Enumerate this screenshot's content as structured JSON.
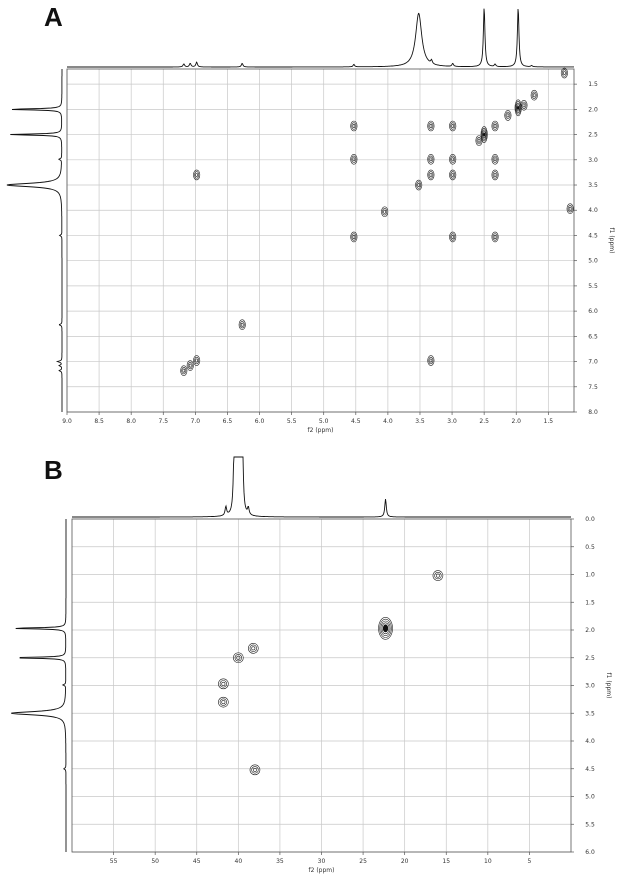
{
  "chart_data": [
    {
      "panel_label": "A",
      "type": "scatter",
      "plot": "2D NMR correlation map (1H-1H)",
      "xlabel": "f2 (ppm)",
      "ylabel": "f1 (ppm)",
      "xlim": [
        9.0,
        1.1
      ],
      "ylim": [
        1.2,
        8.0
      ],
      "x_ticks": [
        "9.0",
        "8.5",
        "8.0",
        "7.5",
        "7.0",
        "6.5",
        "6.0",
        "5.5",
        "5.0",
        "4.5",
        "4.0",
        "3.5",
        "3.0",
        "2.5",
        "2.0",
        "1.5"
      ],
      "y_ticks": [
        "1.5",
        "2.0",
        "2.5",
        "3.0",
        "3.5",
        "4.0",
        "4.5",
        "5.0",
        "5.5",
        "6.0",
        "6.5",
        "7.0",
        "7.5",
        "8.0"
      ],
      "grid": true,
      "projection_x_peaks": [
        {
          "x": 7.18,
          "h": 0.05
        },
        {
          "x": 7.08,
          "h": 0.06
        },
        {
          "x": 6.98,
          "h": 0.08
        },
        {
          "x": 6.27,
          "h": 0.06
        },
        {
          "x": 4.53,
          "h": 0.04
        },
        {
          "x": 3.52,
          "h": 0.88
        },
        {
          "x": 3.32,
          "h": 0.06
        },
        {
          "x": 2.99,
          "h": 0.05
        },
        {
          "x": 2.5,
          "h": 0.98
        },
        {
          "x": 2.33,
          "h": 0.04
        },
        {
          "x": 1.97,
          "h": 0.98
        },
        {
          "x": 1.76,
          "h": 0.02
        }
      ],
      "projection_y_peaks": [
        {
          "y": 2.0,
          "h": 0.9
        },
        {
          "y": 2.5,
          "h": 0.9
        },
        {
          "y": 2.99,
          "h": 0.05
        },
        {
          "y": 3.5,
          "h": 0.95
        },
        {
          "y": 4.5,
          "h": 0.04
        },
        {
          "y": 6.27,
          "h": 0.05
        },
        {
          "y": 7.0,
          "h": 0.08
        },
        {
          "y": 7.08,
          "h": 0.05
        },
        {
          "y": 7.18,
          "h": 0.05
        }
      ],
      "points": [
        {
          "x": 1.25,
          "y": 1.28
        },
        {
          "x": 1.72,
          "y": 1.72
        },
        {
          "x": 1.88,
          "y": 1.92
        },
        {
          "x": 1.97,
          "y": 1.97
        },
        {
          "x": 2.13,
          "y": 2.12
        },
        {
          "x": 2.33,
          "y": 2.33
        },
        {
          "x": 2.5,
          "y": 2.5
        },
        {
          "x": 2.58,
          "y": 2.62
        },
        {
          "x": 2.99,
          "y": 2.33
        },
        {
          "x": 3.33,
          "y": 2.33
        },
        {
          "x": 4.53,
          "y": 2.33
        },
        {
          "x": 2.33,
          "y": 2.99
        },
        {
          "x": 2.99,
          "y": 2.99
        },
        {
          "x": 3.33,
          "y": 2.99
        },
        {
          "x": 4.53,
          "y": 2.99
        },
        {
          "x": 2.33,
          "y": 3.3
        },
        {
          "x": 2.99,
          "y": 3.3
        },
        {
          "x": 3.33,
          "y": 3.3
        },
        {
          "x": 6.98,
          "y": 3.3
        },
        {
          "x": 3.52,
          "y": 3.5
        },
        {
          "x": 4.05,
          "y": 4.03
        },
        {
          "x": 1.16,
          "y": 3.97
        },
        {
          "x": 2.33,
          "y": 4.53
        },
        {
          "x": 2.99,
          "y": 4.53
        },
        {
          "x": 4.53,
          "y": 4.53
        },
        {
          "x": 6.27,
          "y": 6.27
        },
        {
          "x": 3.33,
          "y": 6.98
        },
        {
          "x": 6.98,
          "y": 6.98
        },
        {
          "x": 7.08,
          "y": 7.08
        },
        {
          "x": 7.18,
          "y": 7.18
        }
      ]
    },
    {
      "panel_label": "B",
      "type": "scatter",
      "plot": "2D NMR correlation map (1H-13C)",
      "xlabel": "f2 (ppm)",
      "ylabel": "f1 (ppm)",
      "xlim": [
        60,
        0
      ],
      "ylim": [
        0.0,
        6.0
      ],
      "x_ticks": [
        "55",
        "50",
        "45",
        "40",
        "35",
        "30",
        "25",
        "20",
        "15",
        "10",
        "5"
      ],
      "y_ticks": [
        "0.0",
        "0.5",
        "1.0",
        "1.5",
        "2.0",
        "2.5",
        "3.0",
        "3.5",
        "4.0",
        "4.5",
        "5.0",
        "5.5",
        "6.0"
      ],
      "grid": true,
      "projection_x_peaks": [
        {
          "x": 41.5,
          "h": 0.15
        },
        {
          "x": 40.5,
          "h": 1.0
        },
        {
          "x": 40.3,
          "h": 1.0
        },
        {
          "x": 40.1,
          "h": 1.0
        },
        {
          "x": 39.9,
          "h": 1.0
        },
        {
          "x": 39.7,
          "h": 1.0
        },
        {
          "x": 39.5,
          "h": 1.0
        },
        {
          "x": 38.8,
          "h": 0.12
        },
        {
          "x": 22.3,
          "h": 0.3
        }
      ],
      "projection_y_peaks": [
        {
          "y": 1.97,
          "h": 0.92
        },
        {
          "y": 2.5,
          "h": 0.9
        },
        {
          "y": 2.99,
          "h": 0.05
        },
        {
          "y": 3.5,
          "h": 0.95
        },
        {
          "y": 4.5,
          "h": 0.04
        }
      ],
      "points": [
        {
          "x": 40.0,
          "y": 2.5
        },
        {
          "x": 38.2,
          "y": 2.33
        },
        {
          "x": 41.8,
          "y": 2.97
        },
        {
          "x": 41.8,
          "y": 3.3
        },
        {
          "x": 38.0,
          "y": 4.52
        },
        {
          "x": 22.3,
          "y": 1.97
        },
        {
          "x": 16.0,
          "y": 1.02
        }
      ]
    }
  ]
}
